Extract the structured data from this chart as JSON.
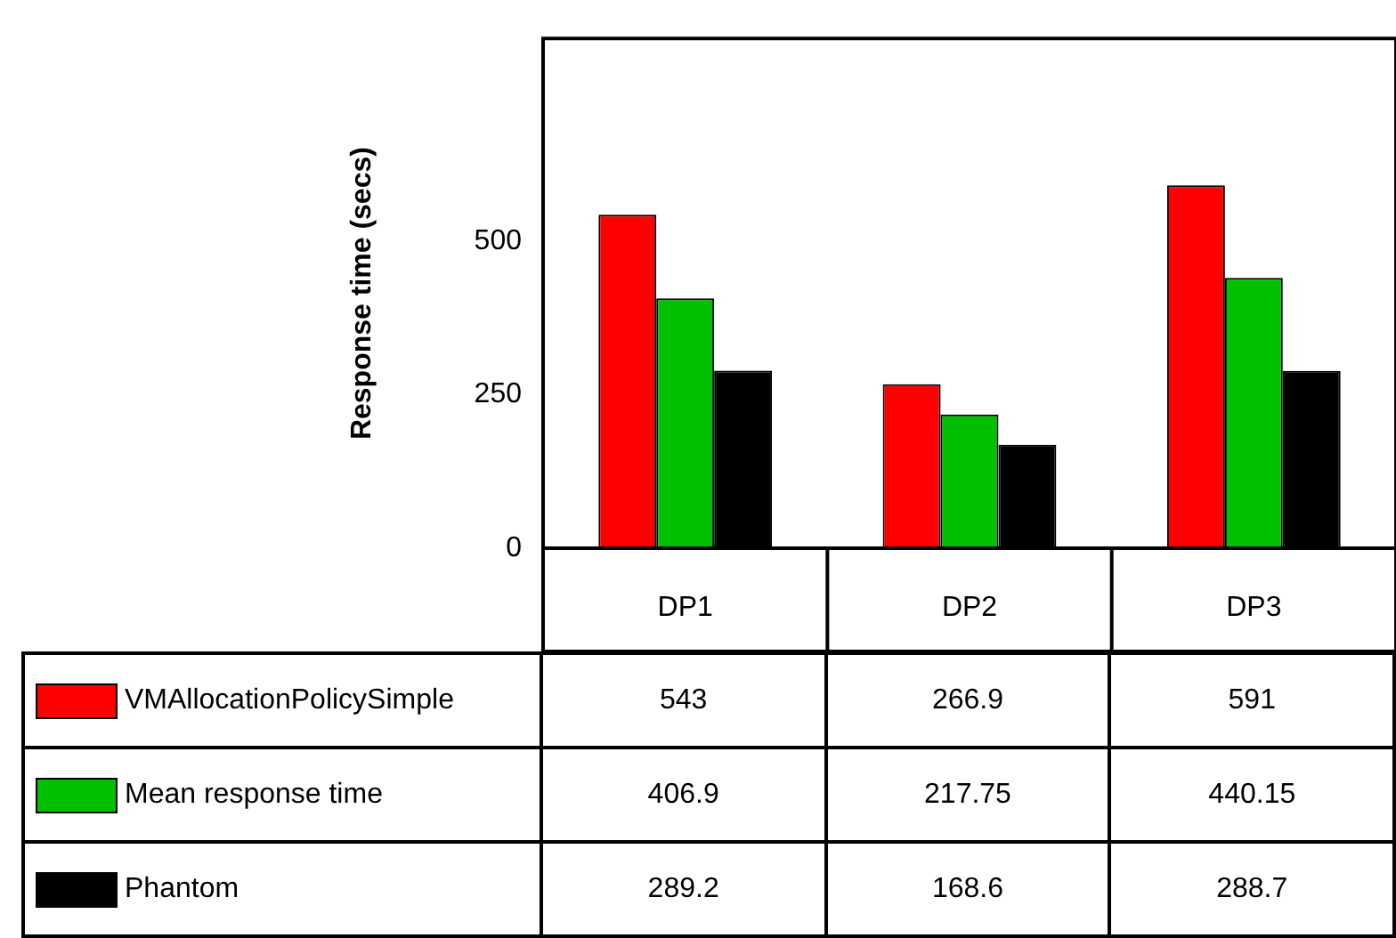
{
  "chart_data": {
    "type": "bar",
    "ylabel": "Response time (secs)",
    "categories": [
      "DP1",
      "DP2",
      "DP3"
    ],
    "series": [
      {
        "name": "VMAllocationPolicySimple",
        "color": "#ff0000",
        "values": [
          543,
          266.9,
          591
        ]
      },
      {
        "name": "Mean response time",
        "color": "#00c000",
        "values": [
          406.9,
          217.75,
          440.15
        ]
      },
      {
        "name": "Phantom",
        "color": "#000000",
        "values": [
          289.2,
          168.6,
          288.7
        ]
      }
    ],
    "ylim": [
      0,
      830
    ],
    "yticks": [
      0,
      250,
      500
    ],
    "grid": false,
    "legend": "bottom left",
    "data_labels": true
  }
}
